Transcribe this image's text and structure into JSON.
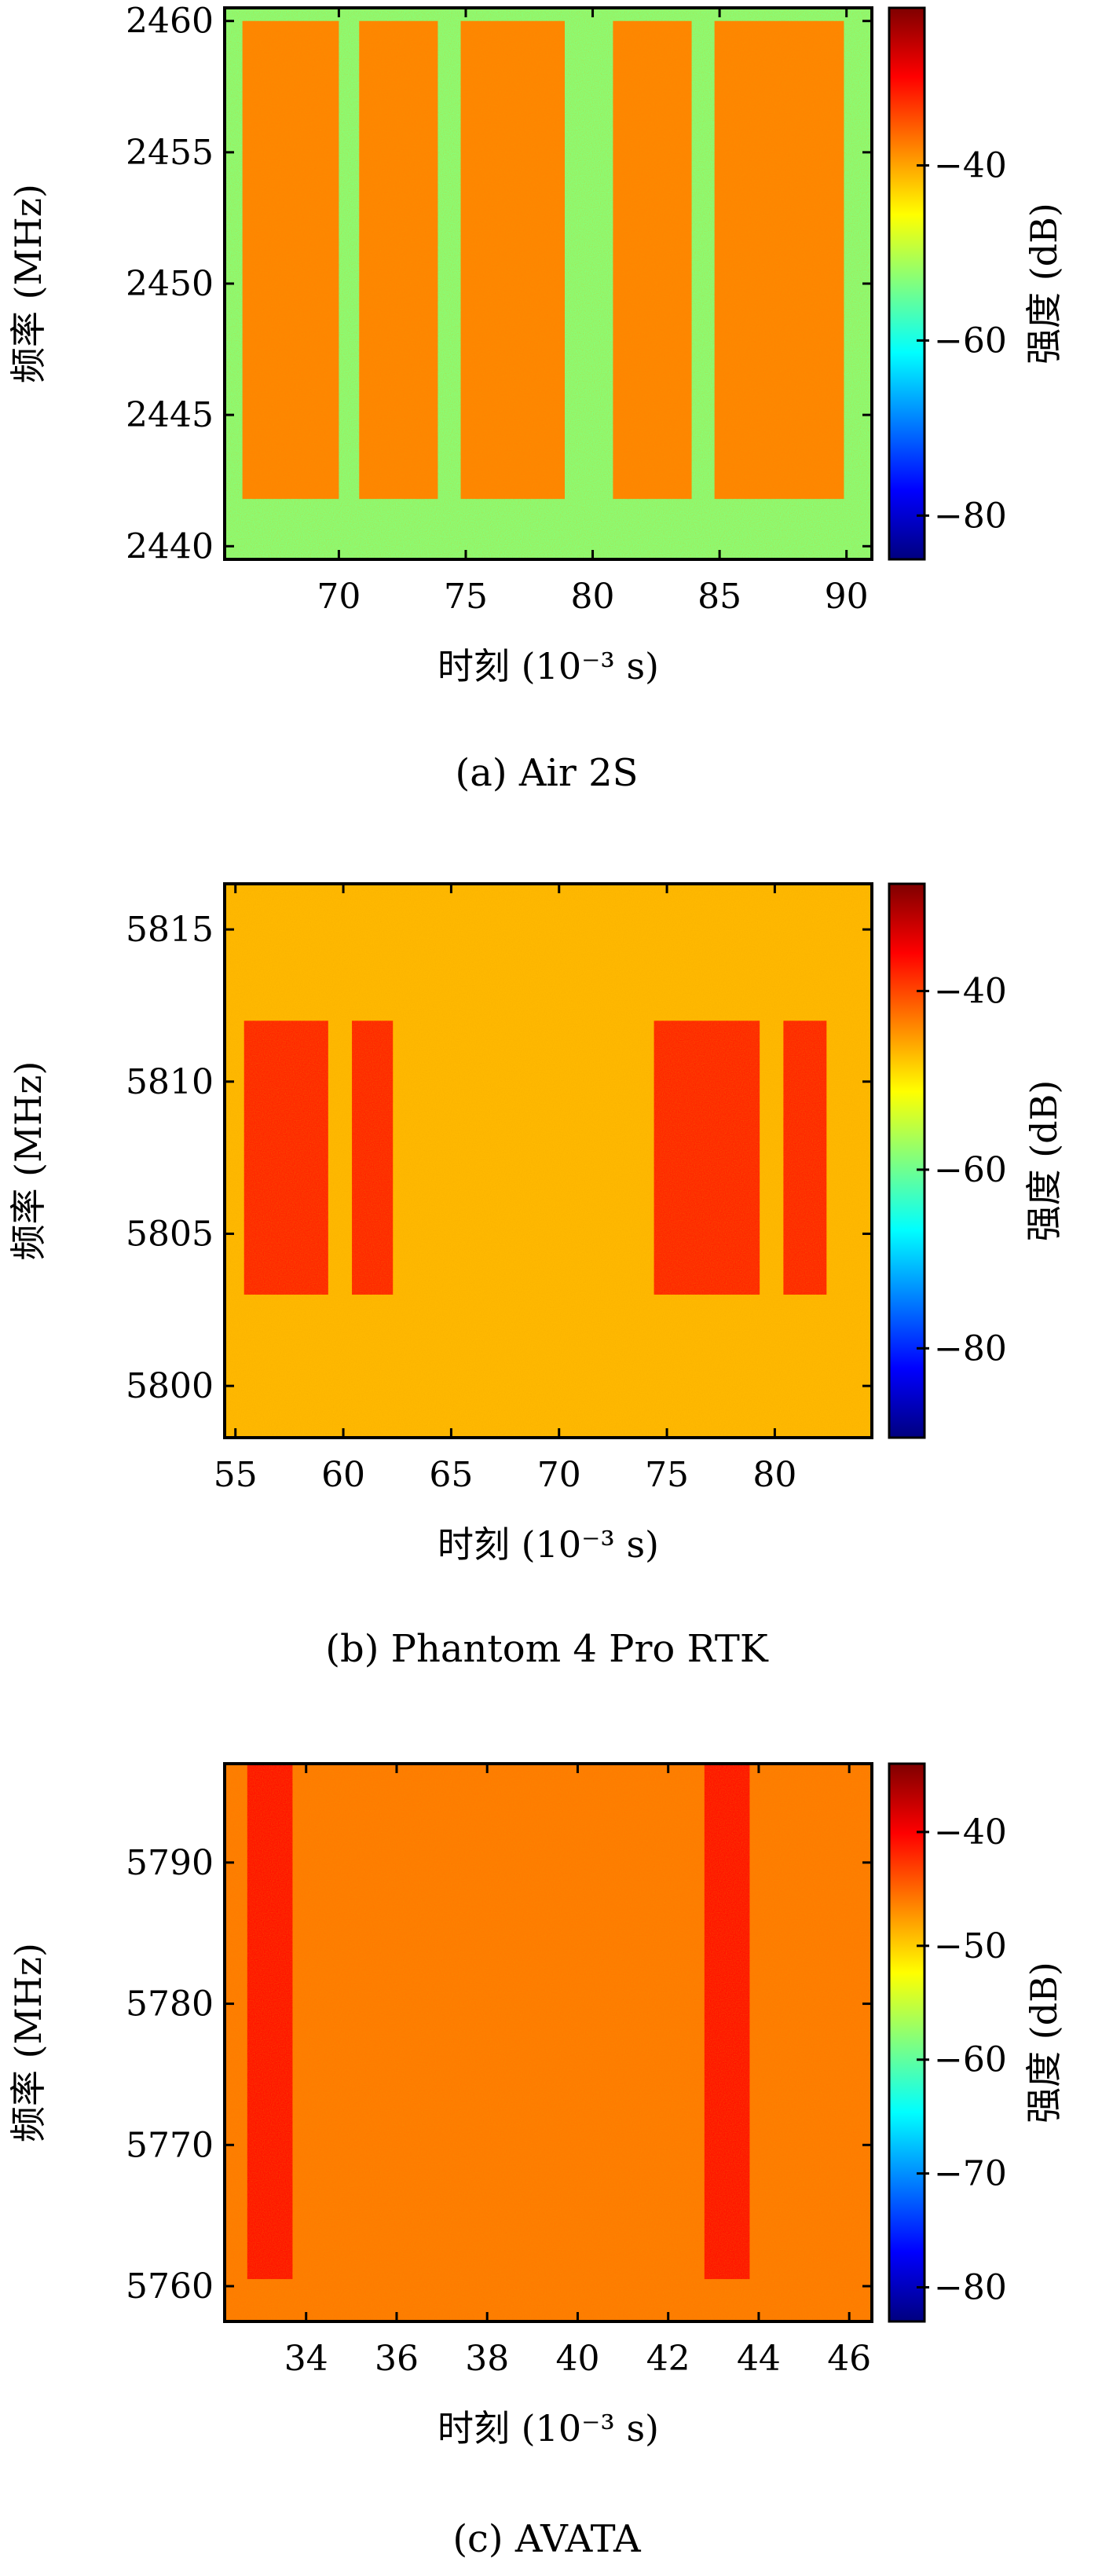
{
  "chart_data": [
    {
      "type": "heatmap",
      "caption": "(a) Air 2S",
      "xlabel": "时刻 (10⁻³ s)",
      "ylabel": "频率 (MHz)",
      "colorbar_label": "强度 (dB)",
      "xlim": [
        65.5,
        91
      ],
      "ylim": [
        2439.5,
        2460.5
      ],
      "x_ticks": [
        70,
        75,
        80,
        85,
        90
      ],
      "y_ticks": [
        2440,
        2445,
        2450,
        2455,
        2460
      ],
      "clim": [
        -85,
        -22
      ],
      "colorbar_ticks": [
        -40,
        -60,
        -80
      ],
      "background_db": -53,
      "bursts": [
        {
          "x": [
            66.2,
            70.0
          ],
          "y": [
            2441.8,
            2460.0
          ],
          "db": -38
        },
        {
          "x": [
            70.8,
            73.9
          ],
          "y": [
            2441.8,
            2460.0
          ],
          "db": -38
        },
        {
          "x": [
            74.8,
            78.9
          ],
          "y": [
            2441.8,
            2460.0
          ],
          "db": -38
        },
        {
          "x": [
            80.8,
            83.9
          ],
          "y": [
            2441.8,
            2460.0
          ],
          "db": -38
        },
        {
          "x": [
            84.8,
            89.9
          ],
          "y": [
            2441.8,
            2460.0
          ],
          "db": -38
        }
      ]
    },
    {
      "type": "heatmap",
      "caption": "(b) Phantom 4 Pro RTK",
      "xlabel": "时刻 (10⁻³ s)",
      "ylabel": "频率 (MHz)",
      "colorbar_label": "强度 (dB)",
      "xlim": [
        54.5,
        84.5
      ],
      "ylim": [
        5798.3,
        5816.5
      ],
      "x_ticks": [
        55,
        60,
        65,
        70,
        75,
        80
      ],
      "y_ticks": [
        5800,
        5805,
        5810,
        5815
      ],
      "clim": [
        -90,
        -28
      ],
      "colorbar_ticks": [
        -40,
        -60,
        -80
      ],
      "background_db": -47,
      "bursts": [
        {
          "x": [
            55.4,
            59.3
          ],
          "y": [
            5803.0,
            5812.0
          ],
          "db": -38
        },
        {
          "x": [
            60.4,
            62.3
          ],
          "y": [
            5803.0,
            5812.0
          ],
          "db": -38
        },
        {
          "x": [
            74.4,
            79.3
          ],
          "y": [
            5803.0,
            5812.0
          ],
          "db": -38
        },
        {
          "x": [
            80.4,
            82.4
          ],
          "y": [
            5803.0,
            5812.0
          ],
          "db": -38
        }
      ]
    },
    {
      "type": "heatmap",
      "caption": "(c) AVATA",
      "xlabel": "时刻 (10⁻³ s)",
      "ylabel": "频率 (MHz)",
      "colorbar_label": "强度 (dB)",
      "xlim": [
        32.2,
        46.5
      ],
      "ylim": [
        5757.5,
        5797.0
      ],
      "x_ticks": [
        34,
        36,
        38,
        40,
        42,
        44,
        46
      ],
      "y_ticks": [
        5760,
        5770,
        5780,
        5790
      ],
      "clim": [
        -83,
        -34
      ],
      "colorbar_ticks": [
        -40,
        -50,
        -60,
        -70,
        -80
      ],
      "background_db": -46,
      "bursts": [
        {
          "x": [
            32.7,
            33.7
          ],
          "y": [
            5760.5,
            5797.0
          ],
          "db": -41
        },
        {
          "x": [
            42.8,
            43.8
          ],
          "y": [
            5760.5,
            5797.0
          ],
          "db": -41
        }
      ]
    }
  ]
}
